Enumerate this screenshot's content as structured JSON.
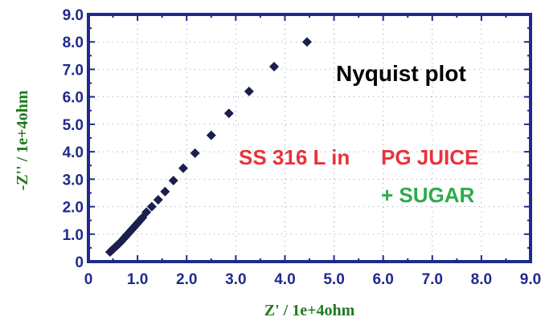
{
  "chart_data": {
    "type": "scatter",
    "title": "",
    "xlabel": "Z' / 1e+4ohm",
    "ylabel": "-Z'' / 1e+4ohm",
    "xlim": [
      0,
      9
    ],
    "ylim": [
      0,
      9
    ],
    "x_ticks": [
      "0",
      "1.0",
      "2.0",
      "3.0",
      "4.0",
      "5.0",
      "6.0",
      "7.0",
      "8.0",
      "9.0"
    ],
    "y_ticks": [
      "0",
      "1.0",
      "2.0",
      "3.0",
      "4.0",
      "5.0",
      "6.0",
      "7.0",
      "8.0",
      "9.0"
    ],
    "grid": "dotted",
    "series": [
      {
        "marker": "diamond",
        "color": "#1a1f4e",
        "x": [
          0.44,
          0.47,
          0.5,
          0.53,
          0.56,
          0.59,
          0.62,
          0.65,
          0.68,
          0.71,
          0.74,
          0.77,
          0.8,
          0.83,
          0.86,
          0.89,
          0.92,
          0.95,
          0.98,
          1.01,
          1.05,
          1.1,
          1.18,
          1.29,
          1.42,
          1.56,
          1.73,
          1.93,
          2.17,
          2.5,
          2.86,
          3.27,
          3.78,
          4.45
        ],
        "y": [
          0.35,
          0.4,
          0.45,
          0.5,
          0.55,
          0.6,
          0.65,
          0.7,
          0.76,
          0.82,
          0.88,
          0.94,
          1.0,
          1.06,
          1.12,
          1.18,
          1.24,
          1.3,
          1.36,
          1.42,
          1.5,
          1.6,
          1.8,
          2.0,
          2.25,
          2.55,
          2.95,
          3.4,
          3.95,
          4.6,
          5.4,
          6.2,
          7.1,
          8.0
        ]
      }
    ],
    "annotations": [
      {
        "text": "Nyquist plot",
        "color": "#000000"
      },
      {
        "text": "SS 316 L in",
        "color": "#e8323c"
      },
      {
        "text": "PG JUICE",
        "color": "#e8323c"
      },
      {
        "text": "+ SUGAR",
        "color": "#2faa4a"
      }
    ],
    "colors": {
      "frame": "#1f2a8c",
      "tick_labels": "#1f2a8c",
      "axis_titles": "#1e7a1e",
      "grid": "#9aa0b8",
      "marker": "#1a1f4e"
    }
  }
}
